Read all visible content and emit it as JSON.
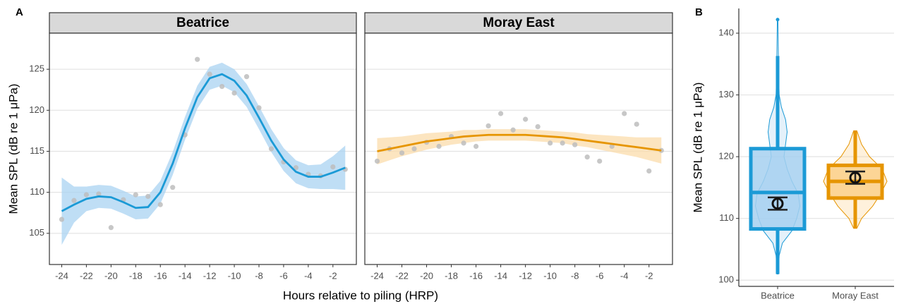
{
  "chart_data": [
    {
      "type": "faceted-smooth",
      "panel": "A",
      "xlabel": "Hours relative to piling (HRP)",
      "ylabel": "Mean SPL (dB re 1 μPa)",
      "xlim": [
        -25.0,
        -0.1
      ],
      "xticks": [
        -24,
        -22,
        -20,
        -18,
        -16,
        -14,
        -12,
        -10,
        -8,
        -6,
        -4,
        -2
      ],
      "ylim": [
        101.2,
        129.4
      ],
      "yticks": [
        105,
        110,
        115,
        120,
        125
      ],
      "grid": true,
      "point_color": "#bdbdbd",
      "facets": [
        {
          "title": "Beatrice",
          "color": "#1b9ad6",
          "ribbon_color": "#a9d3f2",
          "x": [
            -24,
            -23,
            -22,
            -21,
            -20,
            -19,
            -18,
            -17,
            -16,
            -15,
            -14,
            -13,
            -12,
            -11,
            -10,
            -9,
            -8,
            -7,
            -6,
            -5,
            -4,
            -3,
            -2,
            -1
          ],
          "points": [
            106.7,
            109.0,
            109.7,
            109.8,
            105.7,
            109.1,
            109.7,
            109.5,
            108.5,
            110.6,
            117.0,
            126.2,
            124.4,
            122.9,
            122.1,
            124.1,
            120.3,
            115.3,
            113.7,
            113.0,
            112.2,
            112.0,
            113.1,
            112.8
          ],
          "fit": [
            107.7,
            108.5,
            109.2,
            109.5,
            109.4,
            108.8,
            108.1,
            108.2,
            110.0,
            113.5,
            117.8,
            121.6,
            123.9,
            124.4,
            123.6,
            121.8,
            119.1,
            116.3,
            114.0,
            112.5,
            111.9,
            111.9,
            112.4,
            113.0
          ],
          "lower": [
            103.6,
            106.3,
            107.7,
            108.1,
            108.0,
            107.4,
            106.7,
            106.8,
            108.6,
            112.1,
            116.4,
            120.2,
            122.5,
            123.0,
            122.2,
            120.4,
            117.7,
            114.9,
            112.6,
            111.1,
            110.5,
            110.4,
            110.4,
            110.3
          ],
          "upper": [
            111.8,
            110.7,
            110.7,
            110.9,
            110.8,
            110.2,
            109.5,
            109.6,
            111.4,
            114.9,
            119.2,
            123.0,
            125.3,
            125.8,
            125.0,
            123.2,
            120.5,
            117.7,
            115.4,
            113.9,
            113.3,
            113.4,
            114.4,
            115.7
          ]
        },
        {
          "title": "Moray East",
          "color": "#e69500",
          "ribbon_color": "#fbdcab",
          "x": [
            -24,
            -23,
            -22,
            -21,
            -20,
            -19,
            -18,
            -17,
            -16,
            -15,
            -14,
            -13,
            -12,
            -11,
            -10,
            -9,
            -8,
            -7,
            -6,
            -5,
            -4,
            -3,
            -2,
            -1
          ],
          "points": [
            113.8,
            115.3,
            114.8,
            115.3,
            116.1,
            115.6,
            116.8,
            116.0,
            115.6,
            118.1,
            119.6,
            117.6,
            118.9,
            118.0,
            116.0,
            116.0,
            115.8,
            114.3,
            113.8,
            115.6,
            119.6,
            118.3,
            112.6,
            115.1
          ],
          "fit": [
            115.0,
            115.3,
            115.6,
            115.9,
            116.2,
            116.4,
            116.6,
            116.8,
            116.9,
            117.0,
            117.0,
            117.0,
            117.0,
            116.9,
            116.8,
            116.7,
            116.5,
            116.3,
            116.1,
            115.9,
            115.7,
            115.5,
            115.3,
            115.1
          ],
          "lower": [
            113.4,
            113.9,
            114.4,
            114.8,
            115.2,
            115.5,
            115.8,
            116.0,
            116.2,
            116.3,
            116.3,
            116.3,
            116.3,
            116.2,
            116.1,
            116.0,
            115.7,
            115.5,
            115.2,
            114.9,
            114.6,
            114.3,
            113.9,
            113.5
          ],
          "upper": [
            116.6,
            116.7,
            116.8,
            117.0,
            117.2,
            117.3,
            117.4,
            117.6,
            117.6,
            117.7,
            117.7,
            117.7,
            117.7,
            117.6,
            117.5,
            117.4,
            117.3,
            117.1,
            117.0,
            116.9,
            116.8,
            116.7,
            116.7,
            116.7
          ]
        }
      ]
    },
    {
      "type": "violin-box",
      "panel": "B",
      "ylabel": "Mean SPL (dB re 1 μPa)",
      "ylim": [
        99.0,
        144.0
      ],
      "yticks": [
        100,
        110,
        120,
        130,
        140
      ],
      "grid": true,
      "categories": [
        "Beatrice",
        "Moray East"
      ],
      "colors": [
        "#1b9ad6",
        "#e69500"
      ],
      "fills": [
        "#a6d0f0",
        "#fbd08a"
      ],
      "boxes": [
        {
          "q1": 108.3,
          "median": 114.2,
          "q3": 121.3,
          "whisker_low": 101.0,
          "whisker_high": 136.3,
          "outliers": [
            142.2
          ],
          "mean": 112.4,
          "mean_low": 111.4,
          "mean_high": 113.4,
          "violin": {
            "y": [
              101,
              104,
              106,
              108,
              110,
              112,
              114,
              116,
              118,
              120,
              122,
              124,
              126,
              128,
              130,
              134,
              138,
              142
            ],
            "density": [
              0.02,
              0.05,
              0.15,
              0.45,
              0.6,
              0.7,
              0.65,
              0.45,
              0.3,
              0.2,
              0.25,
              0.3,
              0.25,
              0.12,
              0.05,
              0.03,
              0.02,
              0.01
            ]
          }
        },
        {
          "q1": 113.3,
          "median": 116.0,
          "q3": 118.6,
          "whisker_low": 108.4,
          "whisker_high": 124.2,
          "outliers": [],
          "mean": 116.6,
          "mean_low": 115.6,
          "mean_high": 117.6,
          "violin": {
            "y": [
              108.4,
              110,
              112,
              114,
              116,
              118,
              120,
              122,
              124.2
            ],
            "density": [
              0.05,
              0.2,
              0.55,
              0.8,
              1.0,
              0.85,
              0.45,
              0.2,
              0.05
            ]
          }
        }
      ]
    }
  ]
}
